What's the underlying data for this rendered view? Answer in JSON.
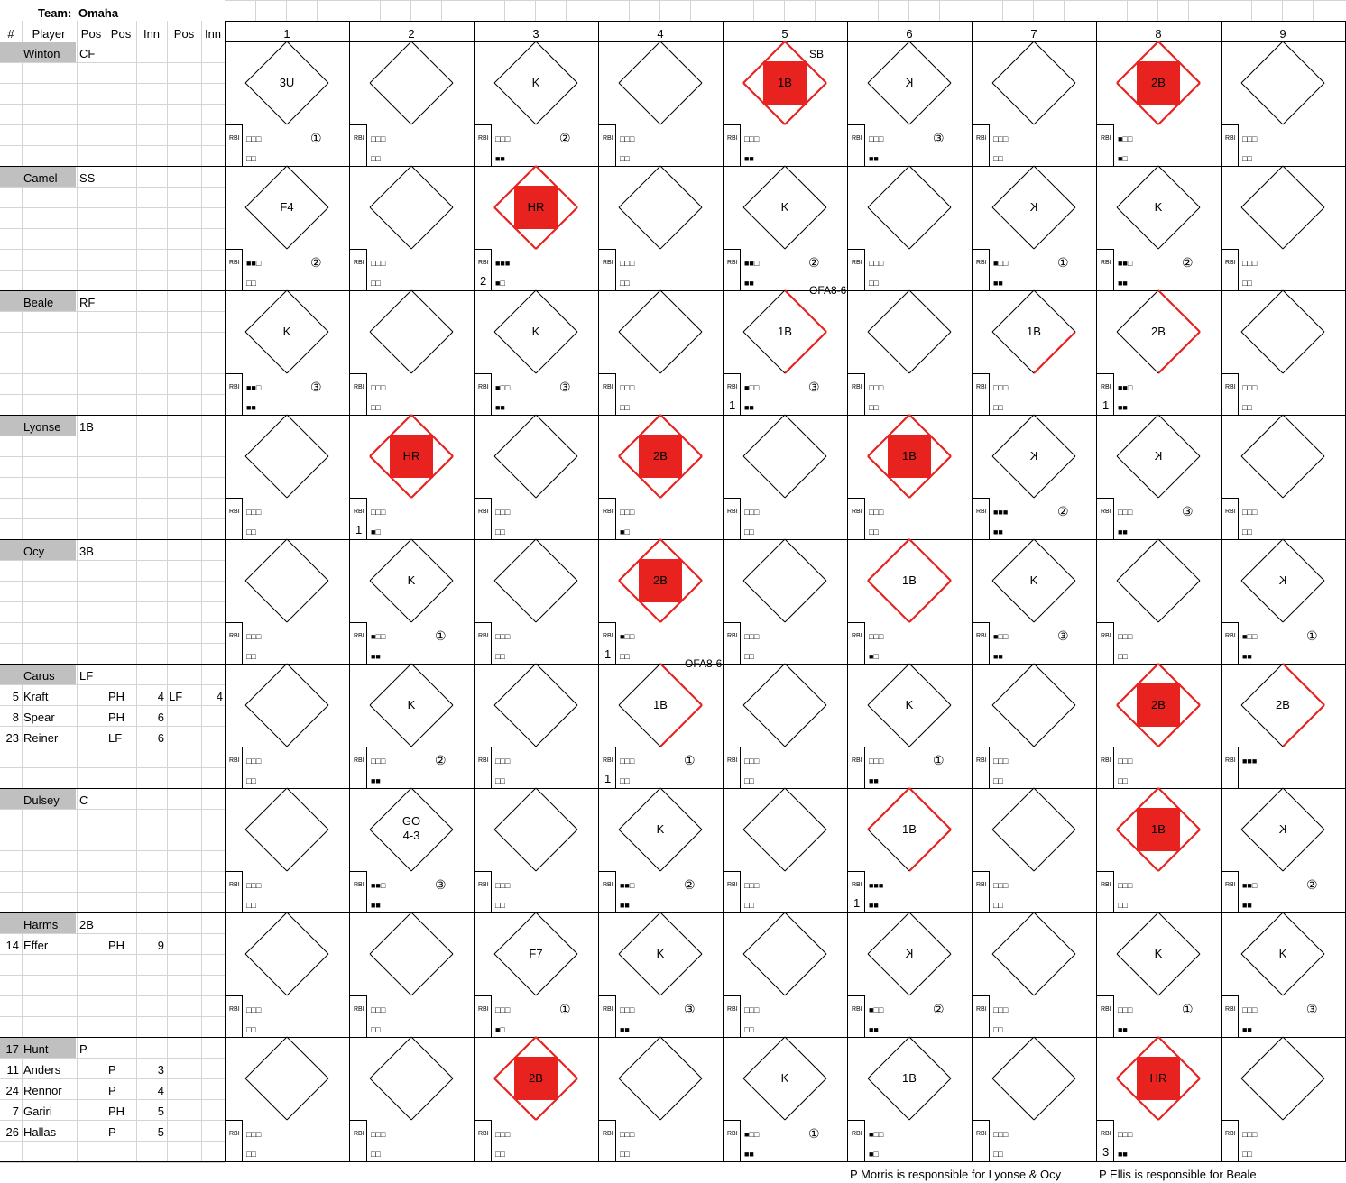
{
  "team_label": "Team:",
  "team_name": "Omaha",
  "headers": {
    "num": "#",
    "player": "Player",
    "pos1": "Pos",
    "pos2": "Pos",
    "inn1": "Inn",
    "pos3": "Pos",
    "inn2": "Inn"
  },
  "innings": [
    "1",
    "2",
    "3",
    "4",
    "5",
    "6",
    "7",
    "8",
    "9"
  ],
  "rbi_label": "RBI",
  "rows": [
    {
      "players": [
        {
          "num": "",
          "name": "Winton",
          "pos": "CF"
        }
      ],
      "cells": [
        {
          "label": "3U",
          "balls": "□□□",
          "strikes": "□□",
          "out": "①"
        },
        {
          "balls": "□□□",
          "strikes": "□□"
        },
        {
          "label": "K",
          "balls": "□□□",
          "strikes": "■■",
          "out": "②"
        },
        {
          "balls": "□□□",
          "strikes": "□□"
        },
        {
          "label": "1B",
          "fill": true,
          "path": 4,
          "note": "SB",
          "balls": "□□□",
          "strikes": "■■"
        },
        {
          "label": "K",
          "mirror": true,
          "balls": "□□□",
          "strikes": "■■",
          "out": "③"
        },
        {
          "balls": "□□□",
          "strikes": "□□"
        },
        {
          "label": "2B",
          "fill": true,
          "path": 4,
          "balls": "■□□",
          "strikes": "■□"
        },
        {
          "balls": "□□□",
          "strikes": "□□"
        }
      ]
    },
    {
      "players": [
        {
          "num": "",
          "name": "Camel",
          "pos": "SS"
        }
      ],
      "cells": [
        {
          "label": "F4",
          "balls": "■■□",
          "strikes": "□□",
          "out": "②"
        },
        {
          "balls": "□□□",
          "strikes": "□□"
        },
        {
          "label": "HR",
          "fill": true,
          "path": 4,
          "balls": "■■■",
          "strikes": "■□",
          "rbi": "2"
        },
        {
          "balls": "□□□",
          "strikes": "□□"
        },
        {
          "label": "K",
          "balls": "■■□",
          "strikes": "■■",
          "out": "②"
        },
        {
          "balls": "□□□",
          "strikes": "□□"
        },
        {
          "label": "K",
          "mirror": true,
          "balls": "■□□",
          "strikes": "■■",
          "out": "①"
        },
        {
          "label": "K",
          "balls": "■■□",
          "strikes": "■■",
          "out": "②"
        },
        {
          "balls": "□□□",
          "strikes": "□□"
        }
      ]
    },
    {
      "players": [
        {
          "num": "",
          "name": "Beale",
          "pos": "RF"
        }
      ],
      "cells": [
        {
          "label": "K",
          "balls": "■■□",
          "strikes": "■■",
          "out": "③"
        },
        {
          "balls": "□□□",
          "strikes": "□□"
        },
        {
          "label": "K",
          "balls": "■□□",
          "strikes": "■■",
          "out": "③"
        },
        {
          "balls": "□□□",
          "strikes": "□□"
        },
        {
          "label": "1B",
          "path": 2,
          "note": "OFA8-6",
          "balls": "■□□",
          "strikes": "■■",
          "out": "③",
          "rbi": "1"
        },
        {
          "balls": "□□□",
          "strikes": "□□"
        },
        {
          "label": "1B",
          "path": 1,
          "balls": "□□□",
          "strikes": "□□"
        },
        {
          "label": "2B",
          "path": 2,
          "balls": "■■□",
          "strikes": "■■",
          "rbi": "1"
        },
        {
          "balls": "□□□",
          "strikes": "□□"
        }
      ]
    },
    {
      "players": [
        {
          "num": "",
          "name": "Lyonse",
          "pos": "1B"
        }
      ],
      "cells": [
        {
          "balls": "□□□",
          "strikes": "□□"
        },
        {
          "label": "HR",
          "fill": true,
          "path": 4,
          "balls": "□□□",
          "strikes": "■□",
          "rbi": "1"
        },
        {
          "balls": "□□□",
          "strikes": "□□"
        },
        {
          "label": "2B",
          "fill": true,
          "path": 4,
          "balls": "□□□",
          "strikes": "■□"
        },
        {
          "balls": "□□□",
          "strikes": "□□"
        },
        {
          "label": "1B",
          "fill": true,
          "path": 4,
          "balls": "□□□",
          "strikes": "□□"
        },
        {
          "label": "K",
          "mirror": true,
          "balls": "■■■",
          "strikes": "■■",
          "out": "②"
        },
        {
          "label": "K",
          "mirror": true,
          "balls": "□□□",
          "strikes": "■■",
          "out": "③"
        },
        {
          "balls": "□□□",
          "strikes": "□□"
        }
      ]
    },
    {
      "players": [
        {
          "num": "",
          "name": "Ocy",
          "pos": "3B"
        }
      ],
      "cells": [
        {
          "balls": "□□□",
          "strikes": "□□"
        },
        {
          "label": "K",
          "balls": "■□□",
          "strikes": "■■",
          "out": "①"
        },
        {
          "balls": "□□□",
          "strikes": "□□"
        },
        {
          "label": "2B",
          "fill": true,
          "path": 4,
          "balls": "■□□",
          "strikes": "□□",
          "rbi": "1"
        },
        {
          "balls": "□□□",
          "strikes": "□□"
        },
        {
          "label": "1B",
          "path": 4,
          "balls": "□□□",
          "strikes": "■□"
        },
        {
          "label": "K",
          "balls": "■□□",
          "strikes": "■■",
          "out": "③"
        },
        {
          "balls": "□□□",
          "strikes": "□□"
        },
        {
          "label": "K",
          "mirror": true,
          "balls": "■□□",
          "strikes": "■■",
          "out": "①"
        }
      ]
    },
    {
      "players": [
        {
          "num": "",
          "name": "Carus",
          "pos": "LF"
        },
        {
          "num": "5",
          "name": "Kraft",
          "pos2": "PH",
          "inn1": "4",
          "pos3": "LF",
          "inn2": "4"
        },
        {
          "num": "8",
          "name": "Spear",
          "pos2": "PH",
          "inn1": "6"
        },
        {
          "num": "23",
          "name": "Reiner",
          "pos2": "LF",
          "inn1": "6"
        }
      ],
      "cells": [
        {
          "balls": "□□□",
          "strikes": "□□"
        },
        {
          "label": "K",
          "balls": "□□□",
          "strikes": "■■",
          "out": "②"
        },
        {
          "balls": "□□□",
          "strikes": "□□"
        },
        {
          "label": "1B",
          "path": 2,
          "note": "OFA8-6",
          "balls": "□□□",
          "strikes": "□□",
          "out": "①",
          "rbi": "1"
        },
        {
          "balls": "□□□",
          "strikes": "□□"
        },
        {
          "label": "K",
          "balls": "□□□",
          "strikes": "■■",
          "out": "①"
        },
        {
          "balls": "□□□",
          "strikes": "□□"
        },
        {
          "label": "2B",
          "fill": true,
          "path": 4,
          "balls": "□□□",
          "strikes": "□□"
        },
        {
          "label": "2B",
          "path": 2,
          "balls": "■■■",
          "strikes": ""
        }
      ]
    },
    {
      "players": [
        {
          "num": "",
          "name": "Dulsey",
          "pos": "C"
        }
      ],
      "cells": [
        {
          "balls": "□□□",
          "strikes": "□□"
        },
        {
          "label": "GO",
          "label2": "4-3",
          "balls": "■■□",
          "strikes": "■■",
          "out": "③"
        },
        {
          "balls": "□□□",
          "strikes": "□□"
        },
        {
          "label": "K",
          "balls": "■■□",
          "strikes": "■■",
          "out": "②"
        },
        {
          "balls": "□□□",
          "strikes": "□□"
        },
        {
          "label": "1B",
          "path": 3,
          "balls": "■■■",
          "strikes": "■■",
          "rbi": "1"
        },
        {
          "balls": "□□□",
          "strikes": "□□"
        },
        {
          "label": "1B",
          "fill": true,
          "path": 4,
          "balls": "□□□",
          "strikes": "□□"
        },
        {
          "label": "K",
          "mirror": true,
          "balls": "■■□",
          "strikes": "■■",
          "out": "②"
        }
      ]
    },
    {
      "players": [
        {
          "num": "",
          "name": "Harms",
          "pos": "2B"
        },
        {
          "num": "14",
          "name": "Effer",
          "pos2": "PH",
          "inn1": "9"
        }
      ],
      "cells": [
        {
          "balls": "□□□",
          "strikes": "□□"
        },
        {
          "balls": "□□□",
          "strikes": "□□"
        },
        {
          "label": "F7",
          "balls": "□□□",
          "strikes": "■□",
          "out": "①"
        },
        {
          "label": "K",
          "balls": "□□□",
          "strikes": "■■",
          "out": "③"
        },
        {
          "balls": "□□□",
          "strikes": "□□"
        },
        {
          "label": "K",
          "mirror": true,
          "balls": "■□□",
          "strikes": "■■",
          "out": "②"
        },
        {
          "balls": "□□□",
          "strikes": "□□"
        },
        {
          "label": "K",
          "balls": "□□□",
          "strikes": "■■",
          "out": "①"
        },
        {
          "label": "K",
          "balls": "□□□",
          "strikes": "■■",
          "out": "③"
        }
      ]
    },
    {
      "players": [
        {
          "num": "17",
          "name": "Hunt",
          "pos": "P"
        },
        {
          "num": "11",
          "name": "Anders",
          "pos2": "P",
          "inn1": "3"
        },
        {
          "num": "24",
          "name": "Rennor",
          "pos2": "P",
          "inn1": "4"
        },
        {
          "num": "7",
          "name": "Gariri",
          "pos2": "PH",
          "inn1": "5"
        },
        {
          "num": "26",
          "name": "Hallas",
          "pos2": "P",
          "inn1": "5"
        }
      ],
      "cells": [
        {
          "balls": "□□□",
          "strikes": "□□"
        },
        {
          "balls": "□□□",
          "strikes": "□□"
        },
        {
          "label": "2B",
          "fill": true,
          "path": 4,
          "balls": "□□□",
          "strikes": "□□"
        },
        {
          "balls": "□□□",
          "strikes": "□□"
        },
        {
          "label": "K",
          "balls": "■□□",
          "strikes": "■■",
          "out": "①"
        },
        {
          "label": "1B",
          "balls": "■□□",
          "strikes": "■□"
        },
        {
          "balls": "□□□",
          "strikes": "□□"
        },
        {
          "label": "HR",
          "fill": true,
          "path": 4,
          "balls": "□□□",
          "strikes": "■■",
          "rbi": "3"
        },
        {
          "balls": "□□□",
          "strikes": "□□"
        }
      ]
    }
  ],
  "footnotes": [
    "P Morris is responsible for Lyonse & Ocy",
    "P Ellis is responsible for Beale"
  ],
  "colors": {
    "red": "#e8231f",
    "grid": "#d4d4d4",
    "shade": "#c0c0c0"
  }
}
